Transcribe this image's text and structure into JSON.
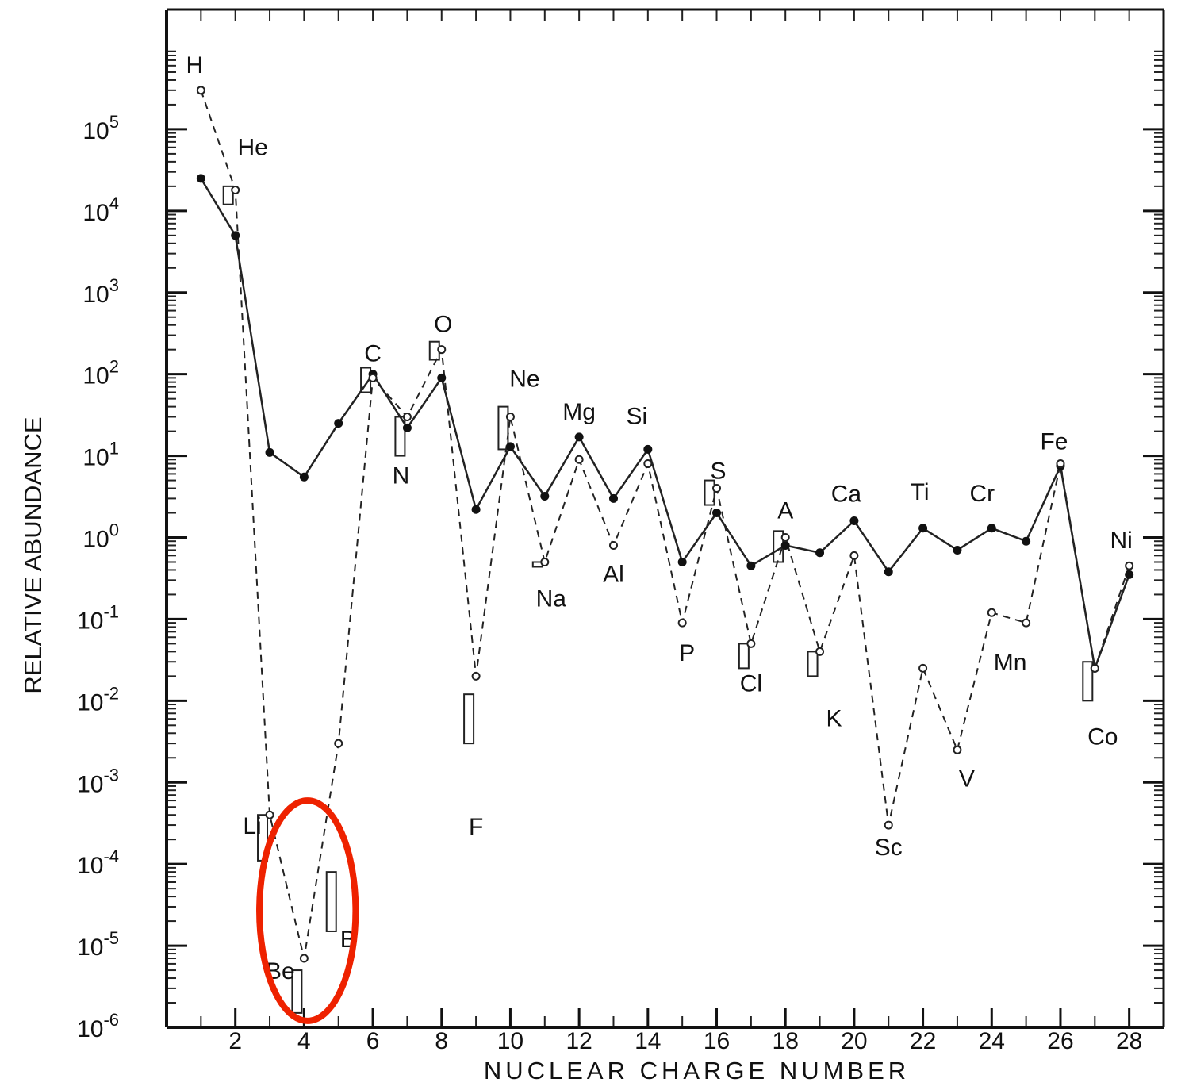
{
  "chart_data": {
    "type": "line",
    "title": "",
    "xlabel": "NUCLEAR CHARGE NUMBER",
    "ylabel": "RELATIVE ABUNDANCE",
    "ylog": true,
    "xlim": [
      0,
      29
    ],
    "ylim": [
      1e-06,
      1000000
    ],
    "grid": false,
    "x_ticks": [
      2,
      4,
      6,
      8,
      10,
      12,
      14,
      16,
      18,
      20,
      22,
      24,
      26,
      28
    ],
    "x_tick_labels": [
      "2",
      "4",
      "6",
      "8",
      "10",
      "12",
      "14",
      "16",
      "18",
      "20",
      "22",
      "24",
      "26",
      "28"
    ],
    "y_ticks": [
      1e-06,
      1e-05,
      0.0001,
      0.001,
      0.01,
      0.1,
      1,
      10,
      100,
      1000,
      10000,
      100000
    ],
    "y_tick_labels": [
      {
        "base": "10",
        "exp": "-6"
      },
      {
        "base": "10",
        "exp": "-5"
      },
      {
        "base": "10",
        "exp": "-4"
      },
      {
        "base": "10",
        "exp": "-3"
      },
      {
        "base": "10",
        "exp": "-2"
      },
      {
        "base": "10",
        "exp": "-1"
      },
      {
        "base": "10",
        "exp": "0"
      },
      {
        "base": "10",
        "exp": "1"
      },
      {
        "base": "10",
        "exp": "2"
      },
      {
        "base": "10",
        "exp": "3"
      },
      {
        "base": "10",
        "exp": "4"
      },
      {
        "base": "10",
        "exp": "5"
      }
    ],
    "series": [
      {
        "style": "solid-filled",
        "x": [
          1,
          2,
          3,
          4,
          5,
          6,
          7,
          8,
          9,
          10,
          11,
          12,
          13,
          14,
          15,
          16,
          17,
          18,
          19,
          20,
          21,
          22,
          23,
          24,
          25,
          26,
          27,
          28
        ],
        "y": [
          25000,
          5000,
          11,
          5.5,
          25,
          100,
          22,
          90,
          2.2,
          13,
          3.2,
          17,
          3,
          12,
          0.5,
          2,
          0.45,
          0.8,
          0.65,
          1.6,
          0.38,
          1.3,
          0.7,
          1.3,
          0.9,
          7.5,
          0.025,
          0.35
        ]
      },
      {
        "style": "dashed-open",
        "x": [
          1,
          2,
          3,
          4,
          5,
          6,
          7,
          8,
          9,
          10,
          11,
          12,
          13,
          14,
          15,
          16,
          17,
          18,
          19,
          20,
          21,
          22,
          23,
          24,
          25,
          26,
          27,
          28
        ],
        "y": [
          300000,
          18000,
          0.0004,
          7e-06,
          0.003,
          90,
          30,
          200,
          0.02,
          30,
          0.5,
          9,
          0.8,
          8,
          0.09,
          4,
          0.05,
          1,
          0.04,
          0.6,
          0.0003,
          0.025,
          0.0025,
          0.12,
          0.09,
          8,
          0.025,
          0.45
        ]
      }
    ],
    "cosmic_ray_bars": [
      {
        "x": 2,
        "lo": 12000,
        "hi": 20000
      },
      {
        "x": 3,
        "lo": 0.00011,
        "hi": 0.0004
      },
      {
        "x": 4,
        "lo": 1.5e-06,
        "hi": 5e-06
      },
      {
        "x": 5,
        "lo": 1.5e-05,
        "hi": 8e-05
      },
      {
        "x": 6,
        "lo": 60,
        "hi": 120
      },
      {
        "x": 7,
        "lo": 10,
        "hi": 30
      },
      {
        "x": 8,
        "lo": 150,
        "hi": 250
      },
      {
        "x": 9,
        "lo": 0.003,
        "hi": 0.012
      },
      {
        "x": 10,
        "lo": 12,
        "hi": 40
      },
      {
        "x": 11,
        "lo": 0.45,
        "hi": 0.5
      },
      {
        "x": 16,
        "lo": 2.5,
        "hi": 5
      },
      {
        "x": 17,
        "lo": 0.025,
        "hi": 0.05
      },
      {
        "x": 18,
        "lo": 0.5,
        "hi": 1.2
      },
      {
        "x": 19,
        "lo": 0.02,
        "hi": 0.04
      },
      {
        "x": 27,
        "lo": 0.01,
        "hi": 0.03
      }
    ],
    "element_labels": [
      {
        "text": "H",
        "x": 1,
        "y": 300000
      },
      {
        "text": "He",
        "x": 2,
        "y": 18000
      },
      {
        "text": "Li",
        "x": 3,
        "y": 0.0004
      },
      {
        "text": "Be",
        "x": 4,
        "y": 7e-06
      },
      {
        "text": "B",
        "x": 5,
        "y": 8e-05
      },
      {
        "text": "C",
        "x": 6,
        "y": 100
      },
      {
        "text": "N",
        "x": 7,
        "y": 22
      },
      {
        "text": "O",
        "x": 8,
        "y": 200
      },
      {
        "text": "F",
        "x": 9,
        "y": 0.003
      },
      {
        "text": "Ne",
        "x": 10,
        "y": 30
      },
      {
        "text": "Na",
        "x": 11,
        "y": 0.5
      },
      {
        "text": "Mg",
        "x": 12,
        "y": 17
      },
      {
        "text": "Al",
        "x": 13,
        "y": 0.8
      },
      {
        "text": "Si",
        "x": 14,
        "y": 12
      },
      {
        "text": "P",
        "x": 15,
        "y": 0.09
      },
      {
        "text": "S",
        "x": 16,
        "y": 4
      },
      {
        "text": "Cl",
        "x": 17,
        "y": 0.05
      },
      {
        "text": "A",
        "x": 18,
        "y": 1
      },
      {
        "text": "K",
        "x": 19,
        "y": 0.02
      },
      {
        "text": "Ca",
        "x": 20,
        "y": 1.6
      },
      {
        "text": "Sc",
        "x": 21,
        "y": 0.0003
      },
      {
        "text": "Ti",
        "x": 22,
        "y": 1.3
      },
      {
        "text": "V",
        "x": 23,
        "y": 0.0025
      },
      {
        "text": "Cr",
        "x": 24,
        "y": 1.3
      },
      {
        "text": "Mn",
        "x": 25,
        "y": 0.09
      },
      {
        "text": "Fe",
        "x": 26,
        "y": 8
      },
      {
        "text": "Co",
        "x": 27,
        "y": 0.01
      },
      {
        "text": "Ni",
        "x": 28,
        "y": 0.45
      }
    ],
    "highlight": {
      "shape": "ellipse",
      "color": "#ee2200",
      "around": [
        "Li",
        "Be",
        "B"
      ],
      "x_range": [
        2.7,
        5.5
      ],
      "y_range": [
        1.2e-06,
        0.0006
      ]
    }
  }
}
